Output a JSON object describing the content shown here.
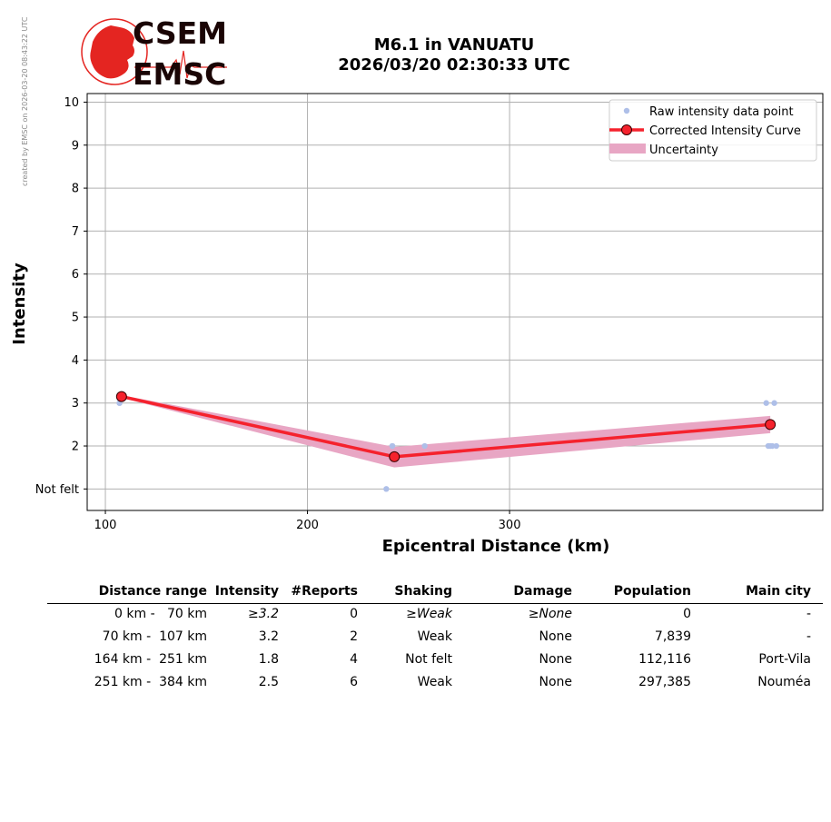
{
  "credit": "created by EMSC on 2026-03-20 08:43:22 UTC",
  "logo": {
    "top_text": "CSEM",
    "bottom_text": "EMSC",
    "color": "#e42521"
  },
  "title": {
    "line1": "M6.1 in VANUATU",
    "line2": "2026/03/20 02:30:33 UTC"
  },
  "chart_data": {
    "type": "line",
    "xlabel": "Epicentral Distance (km)",
    "ylabel": "Intensity",
    "xlim": [
      91,
      455
    ],
    "ylim": [
      0.5,
      10.2
    ],
    "x_ticks": [
      100,
      200,
      300
    ],
    "x_tick_labels": [
      "100",
      "200",
      "300"
    ],
    "y_ticks": [
      1,
      2,
      3,
      4,
      5,
      6,
      7,
      8,
      9,
      10
    ],
    "y_tick_labels": [
      "Not felt",
      "2",
      "3",
      "4",
      "5",
      "6",
      "7",
      "8",
      "9",
      "10"
    ],
    "grid": true,
    "legend_position": "top-right",
    "legend": [
      "Raw intensity data point",
      "Corrected Intensity Curve",
      "Uncertainty"
    ],
    "colors": {
      "raw": "#aebfe8",
      "curve": "#f5222d",
      "uncertainty": "#e8a6c4",
      "marker_edge": "#3a0000"
    },
    "raw_points": [
      {
        "x": 107,
        "y": 3
      },
      {
        "x": 107,
        "y": 3
      },
      {
        "x": 239,
        "y": 1
      },
      {
        "x": 242,
        "y": 2
      },
      {
        "x": 242,
        "y": 2
      },
      {
        "x": 258,
        "y": 2
      },
      {
        "x": 427,
        "y": 3
      },
      {
        "x": 431,
        "y": 3
      },
      {
        "x": 428,
        "y": 2
      },
      {
        "x": 429,
        "y": 2
      },
      {
        "x": 430,
        "y": 2
      },
      {
        "x": 432,
        "y": 2
      }
    ],
    "curve": [
      {
        "x": 108,
        "y": 3.15
      },
      {
        "x": 243,
        "y": 1.75
      },
      {
        "x": 429,
        "y": 2.5
      }
    ],
    "uncertainty": [
      {
        "x": 108,
        "low": 3.12,
        "high": 3.18
      },
      {
        "x": 243,
        "low": 1.5,
        "high": 1.98
      },
      {
        "x": 429,
        "low": 2.3,
        "high": 2.7
      }
    ]
  },
  "table": {
    "headers": [
      "Distance range",
      "Intensity",
      "#Reports",
      "Shaking",
      "Damage",
      "Population",
      "Main city"
    ],
    "rows": [
      {
        "range": "0 km -   70 km",
        "intensity": "≥3.2",
        "reports": "0",
        "shaking": "≥Weak",
        "damage": "≥None",
        "population": "0",
        "city": "-",
        "italic": true
      },
      {
        "range": "70 km -  107 km",
        "intensity": "3.2",
        "reports": "2",
        "shaking": "Weak",
        "damage": "None",
        "population": "7,839",
        "city": "-",
        "italic": false
      },
      {
        "range": "164 km -  251 km",
        "intensity": "1.8",
        "reports": "4",
        "shaking": "Not felt",
        "damage": "None",
        "population": "112,116",
        "city": "Port-Vila",
        "italic": false
      },
      {
        "range": "251 km -  384 km",
        "intensity": "2.5",
        "reports": "6",
        "shaking": "Weak",
        "damage": "None",
        "population": "297,385",
        "city": "Nouméa",
        "italic": false
      }
    ]
  }
}
